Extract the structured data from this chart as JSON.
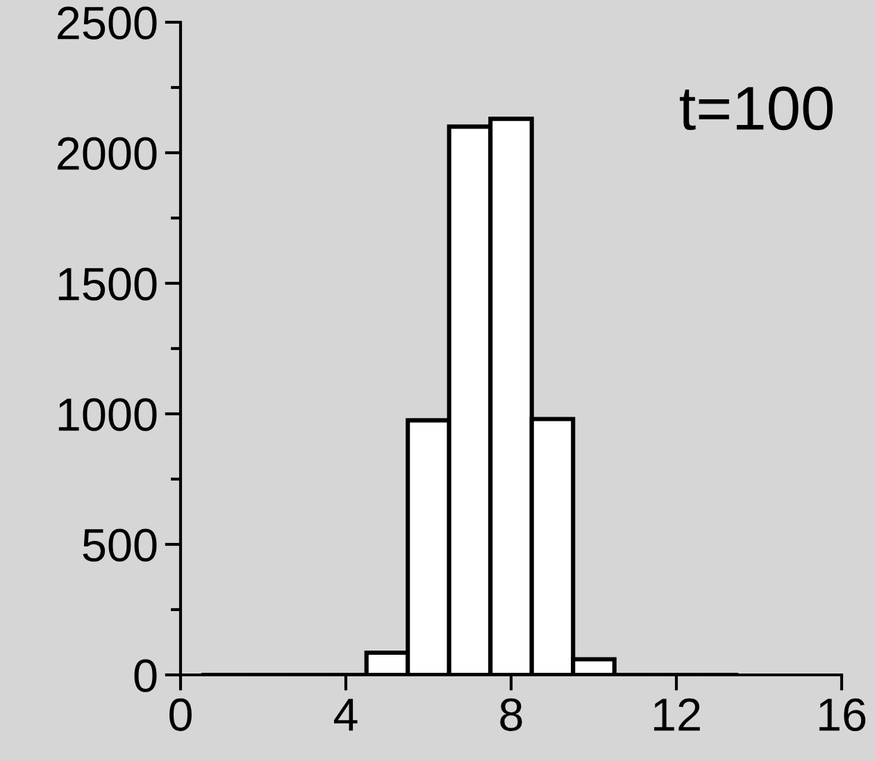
{
  "chart_data": {
    "type": "histogram",
    "bins": [
      0.5,
      1.5,
      2.5,
      3.5,
      4.5,
      5.5,
      6.5,
      7.5,
      8.5,
      9.5,
      10.5,
      11.5,
      12.5,
      13.5
    ],
    "values": [
      0,
      0,
      0,
      0,
      85,
      975,
      2100,
      2130,
      980,
      60,
      0,
      0,
      0
    ],
    "colors": [
      "#000000",
      "#000000",
      "#000000",
      "#000000",
      "#ffffff",
      "#ffffff",
      "#ffffff",
      "#ffffff",
      "#ffffff",
      "#ffffff",
      "#000000",
      "#000000",
      "#000000"
    ],
    "xlim": [
      0,
      16
    ],
    "xticks": [
      0,
      4,
      8,
      12,
      16
    ],
    "ylim": [
      0,
      2500
    ],
    "yticks": [
      0,
      {
        "value": 250,
        "label": null
      },
      500,
      {
        "value": 750,
        "label": null
      },
      1000,
      {
        "value": 1250,
        "label": null
      },
      1500,
      {
        "value": 1750,
        "label": null
      },
      2000,
      {
        "value": 2250,
        "label": null
      },
      2500
    ],
    "annotations": [
      "t=100"
    ],
    "grid": false
  }
}
